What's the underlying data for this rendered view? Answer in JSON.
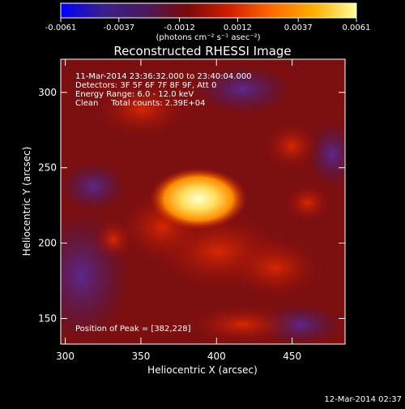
{
  "chart_data": {
    "type": "heatmap",
    "title": "Reconstructed RHESSI Image",
    "xlabel": "Heliocentric X (arcsec)",
    "ylabel": "Heliocentric Y (arcsec)",
    "xlim": [
      297,
      485
    ],
    "ylim": [
      133,
      322
    ],
    "xticks": [
      300,
      350,
      400,
      450
    ],
    "yticks": [
      150,
      200,
      250,
      300
    ],
    "colorbar": {
      "min": -0.0061,
      "max": 0.0061,
      "ticks": [
        "-0.0061",
        "-0.0037",
        "-0.0012",
        "0.0012",
        "0.0037",
        "0.0061"
      ],
      "unit_label": "(photons cm⁻² s⁻¹ asec⁻²)",
      "colormap": [
        "#0000ff",
        "#3a1f8a",
        "#4a1a5c",
        "#7a0a0a",
        "#d21e00",
        "#ff6a00",
        "#ffb000",
        "#ffff9a"
      ]
    },
    "info_lines": [
      "11-Mar-2014 23:36:32.000 to 23:40:04.000",
      "Detectors: 3F 5F 6F 7F 8F 9F, Att 0",
      "Energy Range: 6.0 - 12.0 keV",
      "Clean     Total counts: 2.39E+04"
    ],
    "peak_label": "Position of Peak = [382,228]",
    "peak": [
      382,
      228
    ]
  },
  "footer_timestamp": "12-Mar-2014 02:37"
}
